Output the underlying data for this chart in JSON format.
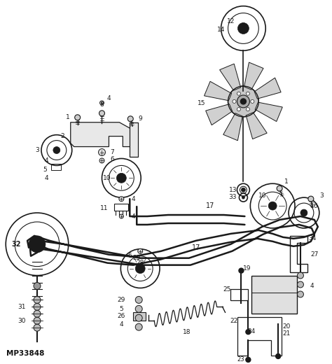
{
  "bg_color": "#ffffff",
  "line_color": "#1a1a1a",
  "watermark": "MP33848",
  "fig_width": 4.74,
  "fig_height": 5.2,
  "dpi": 100
}
